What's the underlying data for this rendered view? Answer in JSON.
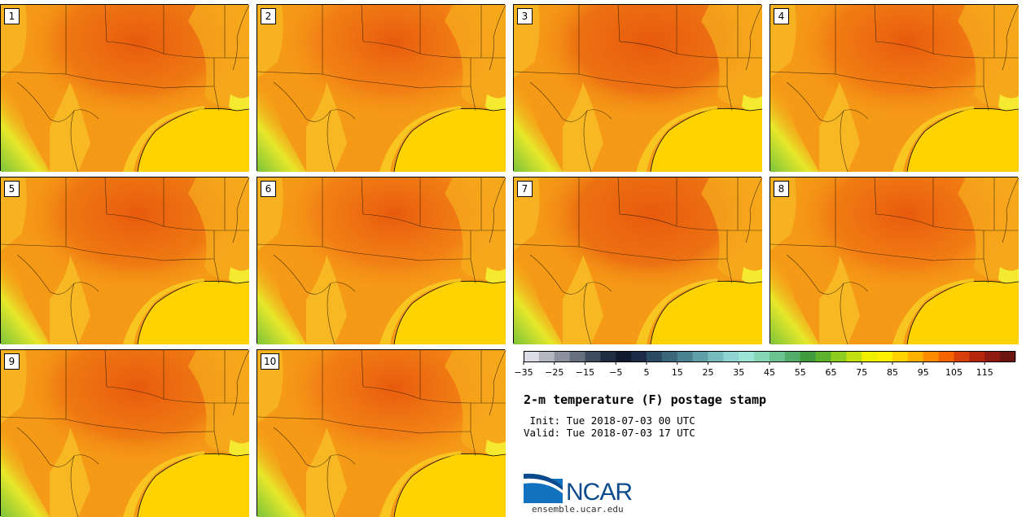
{
  "panels": [
    {
      "label": "1"
    },
    {
      "label": "2"
    },
    {
      "label": "3"
    },
    {
      "label": "4"
    },
    {
      "label": "5"
    },
    {
      "label": "6"
    },
    {
      "label": "7"
    },
    {
      "label": "8"
    },
    {
      "label": "9"
    },
    {
      "label": "10"
    }
  ],
  "colorbar": {
    "colors": [
      "#dcdde6",
      "#b4b7c1",
      "#8c919d",
      "#67707e",
      "#3f4c5f",
      "#1f2c42",
      "#111a2e",
      "#1d2c44",
      "#2c4a60",
      "#3a6678",
      "#4a8290",
      "#5fa0a8",
      "#76bcbf",
      "#8fd4d2",
      "#9be4d6",
      "#85d8b4",
      "#6bc48f",
      "#52ad6a",
      "#3f9a3c",
      "#5db22d",
      "#8fcc20",
      "#c3e012",
      "#f0f000",
      "#ffef00",
      "#ffd200",
      "#ffb100",
      "#ff8c00",
      "#f46400",
      "#d8400a",
      "#b4260c",
      "#8e1a12",
      "#6b1410"
    ],
    "ticks": [
      "−35",
      "−25",
      "−15",
      "−5",
      "5",
      "15",
      "25",
      "35",
      "45",
      "55",
      "65",
      "75",
      "85",
      "95",
      "105",
      "115"
    ]
  },
  "title": "2-m temperature (F) postage stamp",
  "init": " Init: Tue 2018-07-03 00 UTC",
  "valid": "Valid: Tue 2018-07-03 17 UTC",
  "logo": {
    "text": "NCAR",
    "url": "ensemble.ucar.edu",
    "color": "#0b4a8c"
  }
}
